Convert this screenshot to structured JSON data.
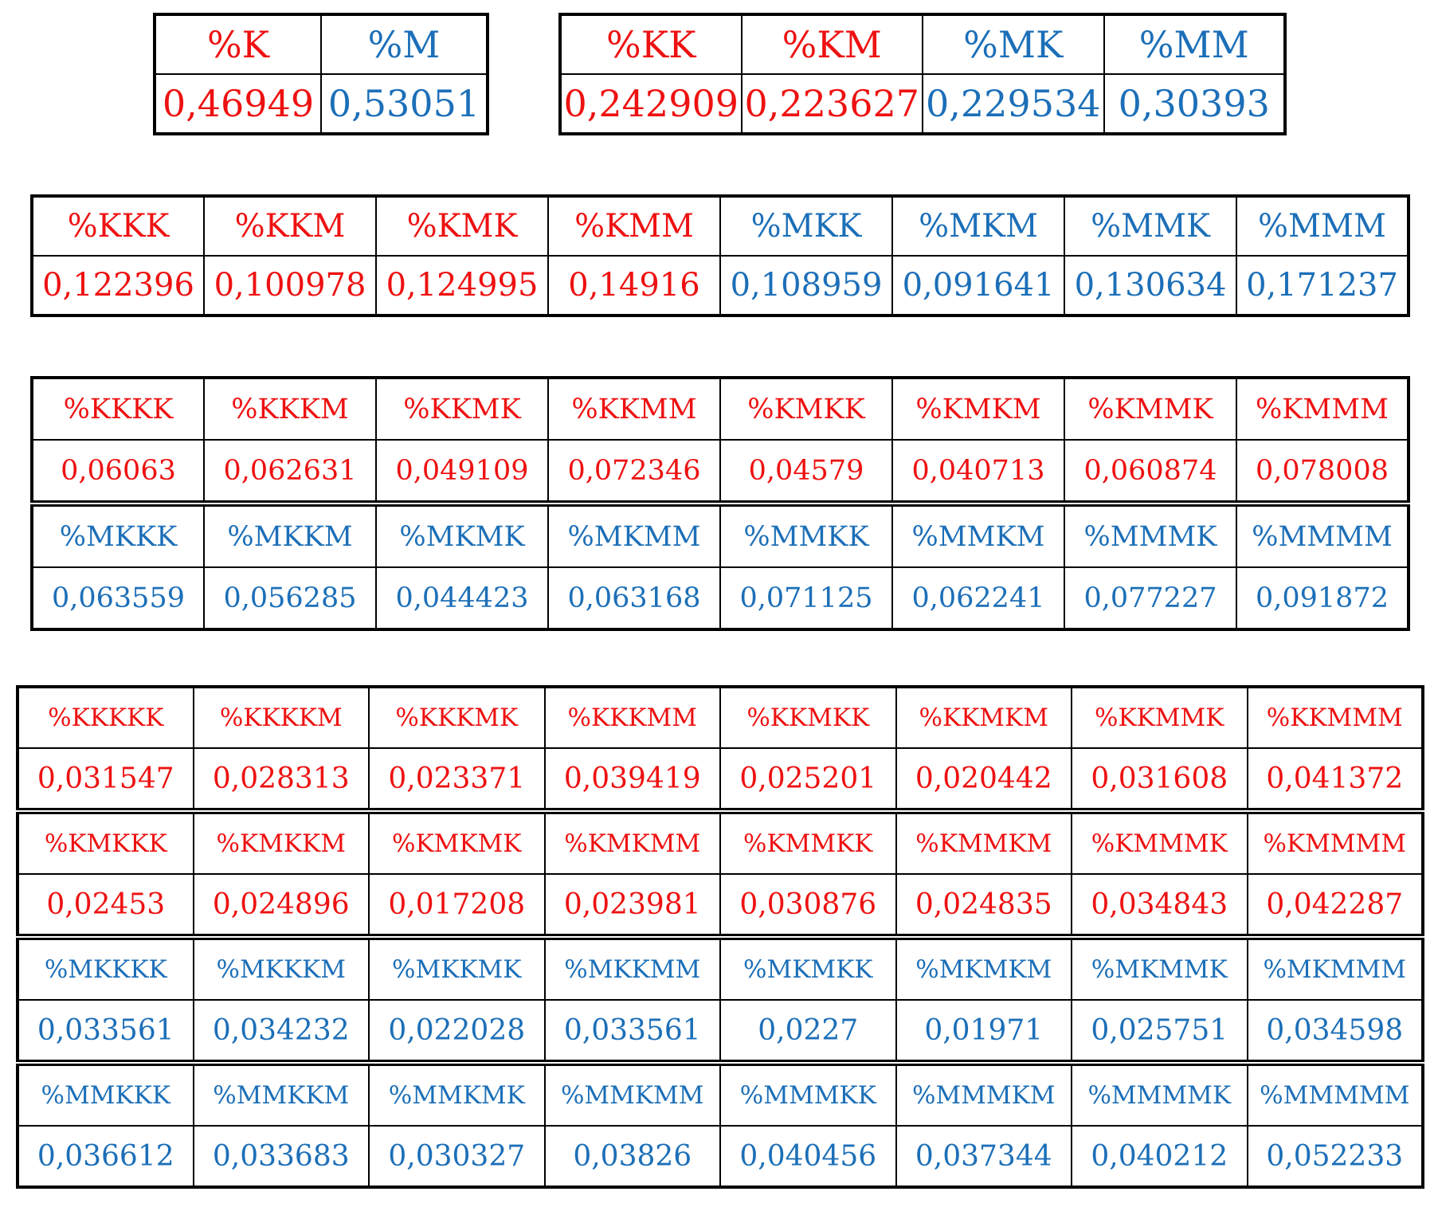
{
  "colors": {
    "k_group": "#ee1111",
    "m_group": "#1c6fb8",
    "border": "#000000"
  },
  "tables": [
    {
      "id": "t1",
      "blocks": [
        {
          "headers": [
            "%K",
            "%M"
          ],
          "values": [
            "0,46949",
            "0,53051"
          ],
          "colors": [
            "red",
            "blue"
          ]
        }
      ]
    },
    {
      "id": "t2",
      "blocks": [
        {
          "headers": [
            "%KK",
            "%KM",
            "%MK",
            "%MM"
          ],
          "values": [
            "0,242909",
            "0,223627",
            "0,229534",
            "0,30393"
          ],
          "colors": [
            "red",
            "red",
            "blue",
            "blue"
          ]
        }
      ]
    },
    {
      "id": "t3",
      "blocks": [
        {
          "headers": [
            "%KKK",
            "%KKM",
            "%KMK",
            "%KMM",
            "%MKK",
            "%MKM",
            "%MMK",
            "%MMM"
          ],
          "values": [
            "0,122396",
            "0,100978",
            "0,124995",
            "0,14916",
            "0,108959",
            "0,091641",
            "0,130634",
            "0,171237"
          ],
          "colors": [
            "red",
            "red",
            "red",
            "red",
            "blue",
            "blue",
            "blue",
            "blue"
          ]
        }
      ]
    },
    {
      "id": "t4",
      "blocks": [
        {
          "headers": [
            "%KKKK",
            "%KKKM",
            "%KKMK",
            "%KKMM",
            "%KMKK",
            "%KMKM",
            "%KMMK",
            "%KMMM"
          ],
          "values": [
            "0,06063",
            "0,062631",
            "0,049109",
            "0,072346",
            "0,04579",
            "0,040713",
            "0,060874",
            "0,078008"
          ],
          "colors": [
            "red",
            "red",
            "red",
            "red",
            "red",
            "red",
            "red",
            "red"
          ]
        },
        {
          "headers": [
            "%MKKK",
            "%MKKM",
            "%MKMK",
            "%MKMM",
            "%MMKK",
            "%MMKM",
            "%MMMK",
            "%MMMM"
          ],
          "values": [
            "0,063559",
            "0,056285",
            "0,044423",
            "0,063168",
            "0,071125",
            "0,062241",
            "0,077227",
            "0,091872"
          ],
          "colors": [
            "blue",
            "blue",
            "blue",
            "blue",
            "blue",
            "blue",
            "blue",
            "blue"
          ]
        }
      ]
    },
    {
      "id": "t5",
      "blocks": [
        {
          "headers": [
            "%KKKKK",
            "%KKKKM",
            "%KKKMK",
            "%KKKMM",
            "%KKMKK",
            "%KKMKM",
            "%KKMMK",
            "%KKMMM"
          ],
          "values": [
            "0,031547",
            "0,028313",
            "0,023371",
            "0,039419",
            "0,025201",
            "0,020442",
            "0,031608",
            "0,041372"
          ],
          "colors": [
            "red",
            "red",
            "red",
            "red",
            "red",
            "red",
            "red",
            "red"
          ]
        },
        {
          "headers": [
            "%KMKKK",
            "%KMKKM",
            "%KMKMK",
            "%KMKMM",
            "%KMMKK",
            "%KMMKM",
            "%KMMMK",
            "%KMMMM"
          ],
          "values": [
            "0,02453",
            "0,024896",
            "0,017208",
            "0,023981",
            "0,030876",
            "0,024835",
            "0,034843",
            "0,042287"
          ],
          "colors": [
            "red",
            "red",
            "red",
            "red",
            "red",
            "red",
            "red",
            "red"
          ]
        },
        {
          "headers": [
            "%MKKKK",
            "%MKKKM",
            "%MKKMK",
            "%MKKMM",
            "%MKMKK",
            "%MKMKM",
            "%MKMMK",
            "%MKMMM"
          ],
          "values": [
            "0,033561",
            "0,034232",
            "0,022028",
            "0,033561",
            "0,0227",
            "0,01971",
            "0,025751",
            "0,034598"
          ],
          "colors": [
            "blue",
            "blue",
            "blue",
            "blue",
            "blue",
            "blue",
            "blue",
            "blue"
          ]
        },
        {
          "headers": [
            "%MMKKK",
            "%MMKKM",
            "%MMKMK",
            "%MMKMM",
            "%MMMKK",
            "%MMMKM",
            "%MMMMK",
            "%MMMMM"
          ],
          "values": [
            "0,036612",
            "0,033683",
            "0,030327",
            "0,03826",
            "0,040456",
            "0,037344",
            "0,040212",
            "0,052233"
          ],
          "colors": [
            "blue",
            "blue",
            "blue",
            "blue",
            "blue",
            "blue",
            "blue",
            "blue"
          ]
        }
      ]
    }
  ]
}
